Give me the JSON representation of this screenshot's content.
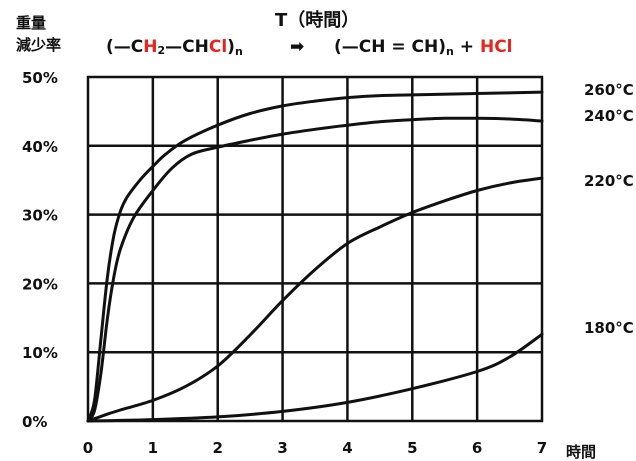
{
  "chart_data": {
    "type": "line",
    "title": "T（時間）",
    "ylabel": [
      "重量",
      "減少率"
    ],
    "xlabel": "時間",
    "reaction": {
      "left_open": "(—C",
      "h": "H",
      "h_sub": "2",
      "mid": "—CH",
      "cl": "Cl",
      "left_close": ")",
      "left_sub": "n",
      "arrow": "➡",
      "right_open": "(—CH = CH)",
      "right_sub": "n",
      "plus": " + ",
      "hcl": "HCl"
    },
    "accent_color": "#e8241c",
    "xlim": [
      0,
      7
    ],
    "ylim": [
      0,
      50
    ],
    "x_ticks": [
      "0",
      "1",
      "2",
      "3",
      "4",
      "5",
      "6",
      "7"
    ],
    "y_ticks": [
      "0%",
      "10%",
      "20%",
      "30%",
      "40%",
      "50%"
    ],
    "grid": true,
    "series": [
      {
        "name": "260°C",
        "x": [
          0,
          0.1,
          0.2,
          0.3,
          0.4,
          0.5,
          0.6,
          0.8,
          1.0,
          1.2,
          1.5,
          2.0,
          2.5,
          3.0,
          3.5,
          4.0,
          4.5,
          5.0,
          6.0,
          7.0
        ],
        "y": [
          0,
          3,
          12,
          21,
          27,
          30.5,
          32.5,
          35,
          37,
          38.8,
          40.8,
          43,
          44.7,
          45.8,
          46.5,
          47,
          47.3,
          47.4,
          47.6,
          47.8
        ]
      },
      {
        "name": "240°C",
        "x": [
          0,
          0.1,
          0.2,
          0.3,
          0.4,
          0.5,
          0.7,
          1.0,
          1.3,
          1.6,
          2.0,
          2.5,
          3.0,
          3.5,
          4.0,
          4.5,
          5.0,
          5.5,
          6.0,
          6.5,
          7.0
        ],
        "y": [
          0,
          1.5,
          7,
          15,
          21,
          25,
          29.5,
          33.5,
          36.8,
          38.8,
          39.8,
          40.8,
          41.7,
          42.4,
          43,
          43.5,
          43.8,
          44,
          44,
          43.9,
          43.6
        ]
      },
      {
        "name": "220°C",
        "x": [
          0,
          0.3,
          0.5,
          1.0,
          1.5,
          2.0,
          2.5,
          3.0,
          3.5,
          4.0,
          4.5,
          5.0,
          5.5,
          6.0,
          6.5,
          7.0
        ],
        "y": [
          0,
          1,
          1.6,
          3,
          5,
          8,
          12.5,
          17.5,
          22,
          25.8,
          28.2,
          30.3,
          32,
          33.5,
          34.6,
          35.3
        ]
      },
      {
        "name": "180°C",
        "x": [
          0,
          1.0,
          2.0,
          3.0,
          4.0,
          5.0,
          6.0,
          6.5,
          7.0
        ],
        "y": [
          0,
          0.2,
          0.6,
          1.4,
          2.7,
          4.7,
          7.2,
          9.3,
          12.6
        ]
      }
    ]
  }
}
